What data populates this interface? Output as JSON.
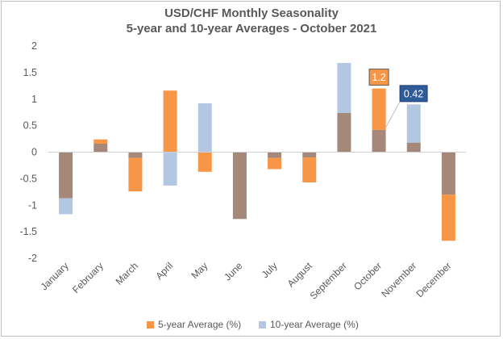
{
  "chart_data": {
    "type": "bar",
    "title": "USD/CHF Monthly Seasonality",
    "subtitle": "5-year and 10-year Averages - October 2021",
    "categories": [
      "January",
      "February",
      "March",
      "April",
      "May",
      "June",
      "July",
      "August",
      "September",
      "October",
      "November",
      "December"
    ],
    "series": [
      {
        "name": "5-year Average (%)",
        "color": "#f79646",
        "values": [
          -0.87,
          0.24,
          -0.74,
          1.16,
          -0.37,
          -1.26,
          -0.32,
          -0.57,
          0.74,
          1.2,
          0.18,
          -1.67
        ]
      },
      {
        "name": "10-year Average (%)",
        "color": "#b3c7e3",
        "values": [
          -1.17,
          0.16,
          -0.11,
          -0.63,
          0.92,
          -1.26,
          -0.11,
          -0.1,
          1.68,
          0.42,
          0.9,
          -0.8
        ]
      }
    ],
    "overlap_color": "#a6887a",
    "ylim": [
      -2,
      2
    ],
    "yticks": [
      "2",
      "1.5",
      "1",
      "0.5",
      "0",
      "-0.5",
      "-1",
      "-1.5",
      "-2"
    ],
    "ytick_values": [
      2,
      1.5,
      1,
      0.5,
      0,
      -0.5,
      -1,
      -1.5,
      -2
    ],
    "callouts": [
      {
        "text": "1.2",
        "series": 0,
        "category": "October",
        "color": "#f79646"
      },
      {
        "text": "0.42",
        "series": 1,
        "category": "October",
        "color": "#2e5c9a"
      }
    ],
    "grid": false,
    "legend_position": "bottom"
  }
}
